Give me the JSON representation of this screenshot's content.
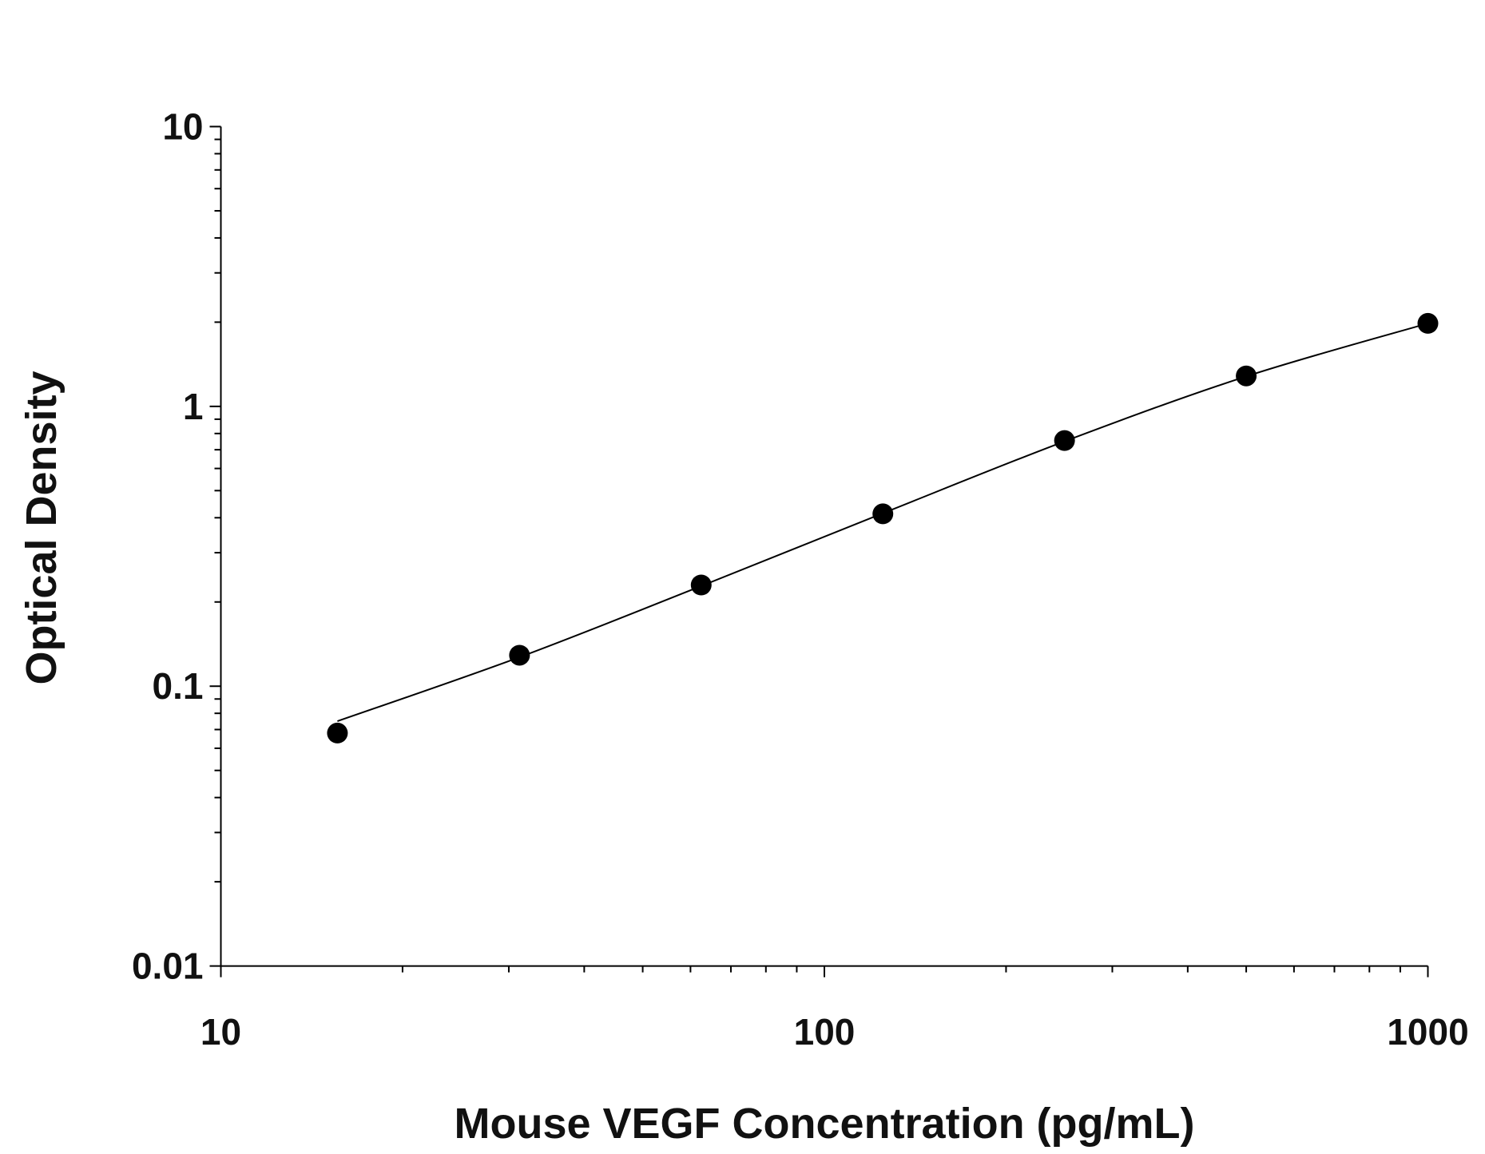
{
  "chart_data": {
    "type": "scatter",
    "title": "",
    "xlabel": "Mouse VEGF Concentration (pg/mL)",
    "ylabel": "Optical Density",
    "xscale": "log",
    "yscale": "log",
    "xlim": [
      10,
      1000
    ],
    "ylim": [
      0.01,
      10
    ],
    "x_ticks": [
      "10",
      "100",
      "1000"
    ],
    "y_ticks": [
      "0.01",
      "0.1",
      "1",
      "10"
    ],
    "grid": false,
    "legend": "none",
    "colors": {
      "points": "#000000",
      "curve": "#000000"
    },
    "series": [
      {
        "x": [
          15.6,
          31.25,
          62.5,
          125,
          250,
          500,
          1000
        ],
        "y": [
          0.068,
          0.129,
          0.23,
          0.413,
          0.755,
          1.285,
          1.98
        ]
      }
    ],
    "fit_curve": {
      "x": [
        15.6,
        31.25,
        62.5,
        125,
        250,
        500,
        1000
      ],
      "y": [
        0.075,
        0.127,
        0.228,
        0.415,
        0.75,
        1.28,
        1.98
      ]
    }
  }
}
